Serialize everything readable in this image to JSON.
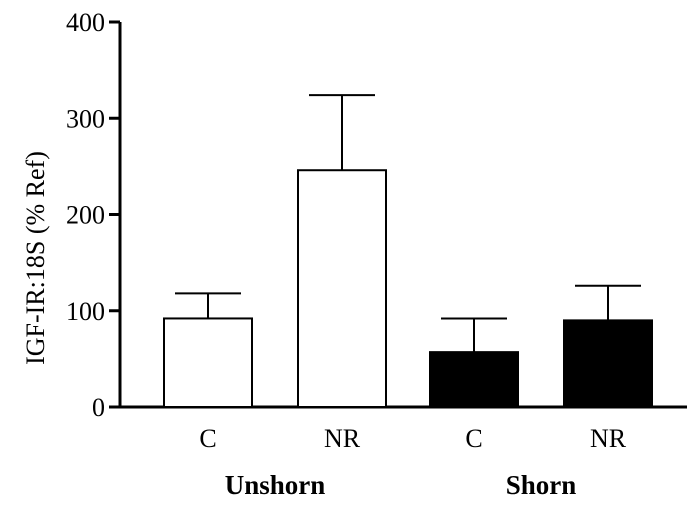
{
  "chart_data": {
    "type": "bar",
    "ylabel": "IGF-IR:18S (% Ref)",
    "ylim": [
      0,
      400
    ],
    "yticks": [
      0,
      100,
      200,
      300,
      400
    ],
    "groups": [
      "Unshorn",
      "Shorn"
    ],
    "categories": [
      "C",
      "NR",
      "C",
      "NR"
    ],
    "values": [
      92,
      246,
      57,
      90
    ],
    "errors": [
      26,
      78,
      35,
      36
    ],
    "colors": [
      "#ffffff",
      "#ffffff",
      "#000000",
      "#000000"
    ]
  }
}
